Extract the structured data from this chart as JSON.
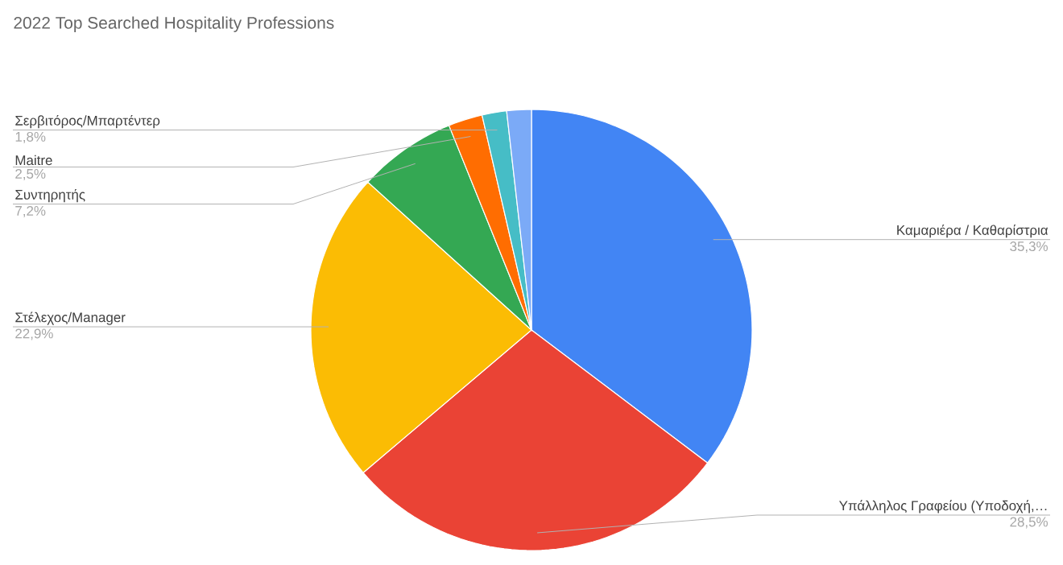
{
  "chart_data": {
    "type": "pie",
    "title": "2022 Top Searched Hospitality Professions",
    "categories": [
      "Καμαριέρα / Καθαρίστρια",
      "Υπάλληλος Γραφείου (Υποδοχή,…",
      "Στέλεχος/Manager",
      "Συντηρητής",
      "Maitre",
      "Σερβιτόρος/Μπαρτέντερ",
      null
    ],
    "values": [
      35.3,
      28.5,
      22.9,
      7.2,
      2.5,
      1.8,
      1.8
    ],
    "value_labels": [
      "35,3%",
      "28,5%",
      "22,9%",
      "7,2%",
      "2,5%",
      "1,8%",
      null
    ],
    "colors": [
      "#4285f4",
      "#ea4335",
      "#fbbc04",
      "#34a853",
      "#ff6d01",
      "#46bdc6",
      "#7baaf7"
    ]
  }
}
